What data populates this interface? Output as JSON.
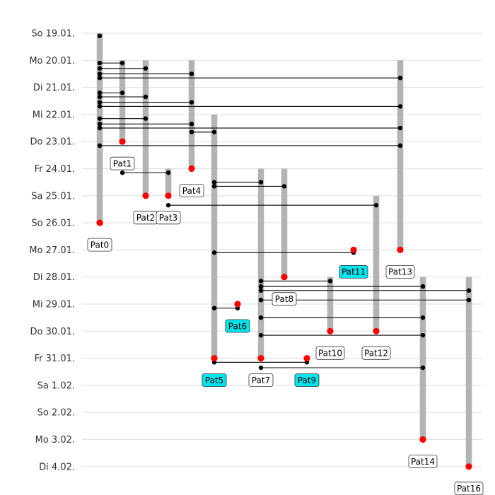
{
  "chart_data": {
    "type": "timeline",
    "y_ticks": [
      "So 19.01.",
      "Mo 20.01.",
      "Di 21.01.",
      "Mi 22.01.",
      "Do 23.01.",
      "Fr 24.01.",
      "Sa 25.01.",
      "So 26.01.",
      "Mo 27.01.",
      "Di 28.01.",
      "Mi 29.01.",
      "Do 30.01.",
      "Fr 31.01.",
      "Sa  1.02.",
      "So  2.02.",
      "Mo  3.02.",
      "Di  4.02."
    ],
    "colors": {
      "bar": "#b3b3b3",
      "endpoint": "#ff0000",
      "contact": "#000000",
      "highlight": "#00e5ee",
      "grid": "#e3e3e3"
    },
    "patients": [
      {
        "name": "Pat0",
        "start": 0,
        "end": 7,
        "highlight": false
      },
      {
        "name": "Pat1",
        "start": 1,
        "end": 4,
        "highlight": false
      },
      {
        "name": "Pat2",
        "start": 1,
        "end": 6,
        "highlight": false
      },
      {
        "name": "Pat3",
        "start": 5,
        "end": 6,
        "highlight": false
      },
      {
        "name": "Pat4",
        "start": 1,
        "end": 5,
        "highlight": false
      },
      {
        "name": "Pat5",
        "start": 3,
        "end": 12,
        "highlight": true
      },
      {
        "name": "Pat6",
        "start": 10,
        "end": 10,
        "highlight": true
      },
      {
        "name": "Pat7",
        "start": 5,
        "end": 12,
        "highlight": false
      },
      {
        "name": "Pat8",
        "start": 5,
        "end": 9,
        "highlight": false
      },
      {
        "name": "Pat9",
        "start": 12,
        "end": 12,
        "highlight": true
      },
      {
        "name": "Pat10",
        "start": 9,
        "end": 11,
        "highlight": false
      },
      {
        "name": "Pat11",
        "start": 8,
        "end": 8,
        "highlight": true
      },
      {
        "name": "Pat12",
        "start": 6,
        "end": 11,
        "highlight": false
      },
      {
        "name": "Pat13",
        "start": 1,
        "end": 8,
        "highlight": false
      },
      {
        "name": "Pat14",
        "start": 9,
        "end": 15,
        "highlight": false
      },
      {
        "name": "Pat16",
        "start": 9,
        "end": 16,
        "highlight": false
      }
    ],
    "contacts": [
      {
        "from": "Pat0",
        "to": "Pat1",
        "t": 1.1
      },
      {
        "from": "Pat0",
        "to": "Pat2",
        "t": 1.3
      },
      {
        "from": "Pat0",
        "to": "Pat4",
        "t": 1.5
      },
      {
        "from": "Pat0",
        "to": "Pat13",
        "t": 1.65
      },
      {
        "from": "Pat0",
        "to": "Pat1",
        "t": 2.2
      },
      {
        "from": "Pat0",
        "to": "Pat2",
        "t": 2.35
      },
      {
        "from": "Pat0",
        "to": "Pat4",
        "t": 2.55
      },
      {
        "from": "Pat0",
        "to": "Pat13",
        "t": 2.7
      },
      {
        "from": "Pat0",
        "to": "Pat2",
        "t": 3.15
      },
      {
        "from": "Pat0",
        "to": "Pat4",
        "t": 3.35
      },
      {
        "from": "Pat0",
        "to": "Pat13",
        "t": 3.5
      },
      {
        "from": "Pat4",
        "to": "Pat5",
        "t": 3.65
      },
      {
        "from": "Pat0",
        "to": "Pat13",
        "t": 4.15
      },
      {
        "from": "Pat1",
        "to": "Pat3",
        "t": 5.15
      },
      {
        "from": "Pat5",
        "to": "Pat7",
        "t": 5.5
      },
      {
        "from": "Pat5",
        "to": "Pat8",
        "t": 5.65
      },
      {
        "from": "Pat3",
        "to": "Pat12",
        "t": 6.35
      },
      {
        "from": "Pat5",
        "to": "Pat11",
        "t": 8.1
      },
      {
        "from": "Pat7",
        "to": "Pat10",
        "t": 9.15
      },
      {
        "from": "Pat7",
        "to": "Pat14",
        "t": 9.35
      },
      {
        "from": "Pat7",
        "to": "Pat16",
        "t": 9.5
      },
      {
        "from": "Pat7",
        "to": "Pat16",
        "t": 9.85
      },
      {
        "from": "Pat5",
        "to": "Pat6",
        "t": 10.15
      },
      {
        "from": "Pat7",
        "to": "Pat14",
        "t": 10.5
      },
      {
        "from": "Pat7",
        "to": "Pat14",
        "t": 11.15
      },
      {
        "from": "Pat5",
        "to": "Pat9",
        "t": 12.15
      },
      {
        "from": "Pat7",
        "to": "Pat14",
        "t": 12.35
      }
    ],
    "grid": true,
    "xlabel": "",
    "ylabel": ""
  }
}
